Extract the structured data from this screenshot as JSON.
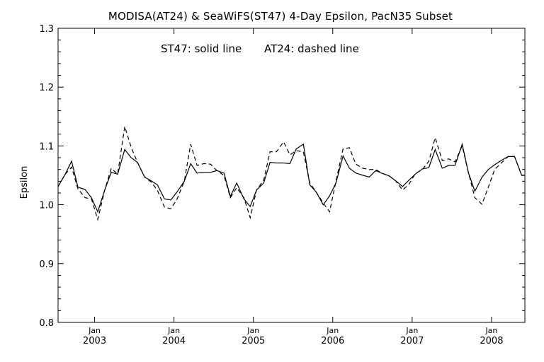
{
  "chart_data": {
    "type": "line",
    "title": "MODISA(AT24) & SeaWiFS(ST47) 4-Day Epsilon, PacN35 Subset",
    "annotation_left": "ST47: solid line",
    "annotation_right": "AT24: dashed line",
    "xlabel": "",
    "ylabel": "Epsilon",
    "ylim": [
      0.8,
      1.3
    ],
    "xlim": [
      2002.54,
      2008.42
    ],
    "y_ticks": [
      "0.8",
      "0.9",
      "1.0",
      "1.1",
      "1.2",
      "1.3"
    ],
    "x_ticks": [
      {
        "month": "Jan",
        "year": "2003",
        "x": 2003.0
      },
      {
        "month": "Jan",
        "year": "2004",
        "x": 2004.0
      },
      {
        "month": "Jan",
        "year": "2005",
        "x": 2005.0
      },
      {
        "month": "Jan",
        "year": "2006",
        "x": 2006.0
      },
      {
        "month": "Jan",
        "year": "2007",
        "x": 2007.0
      },
      {
        "month": "Jan",
        "year": "2008",
        "x": 2008.0
      }
    ],
    "series": [
      {
        "name": "ST47",
        "style": "solid",
        "x": [
          2002.54,
          2002.63,
          2002.71,
          2002.79,
          2002.88,
          2002.96,
          2003.04,
          2003.13,
          2003.21,
          2003.29,
          2003.38,
          2003.46,
          2003.54,
          2003.63,
          2003.71,
          2003.79,
          2003.88,
          2003.96,
          2004.04,
          2004.13,
          2004.21,
          2004.29,
          2004.38,
          2004.46,
          2004.54,
          2004.63,
          2004.71,
          2004.79,
          2004.88,
          2004.96,
          2005.04,
          2005.13,
          2005.21,
          2005.29,
          2005.38,
          2005.46,
          2005.54,
          2005.63,
          2005.71,
          2005.79,
          2005.88,
          2005.96,
          2006.04,
          2006.13,
          2006.21,
          2006.29,
          2006.38,
          2006.46,
          2006.54,
          2006.63,
          2006.71,
          2006.79,
          2006.88,
          2006.96,
          2007.04,
          2007.13,
          2007.21,
          2007.29,
          2007.38,
          2007.46,
          2007.54,
          2007.63,
          2007.71,
          2007.79,
          2007.88,
          2007.96,
          2008.04,
          2008.13,
          2008.21,
          2008.29,
          2008.38,
          2008.42
        ],
        "values": [
          1.031,
          1.052,
          1.074,
          1.03,
          1.026,
          1.012,
          0.988,
          1.026,
          1.055,
          1.052,
          1.094,
          1.08,
          1.072,
          1.047,
          1.041,
          1.034,
          1.01,
          1.008,
          1.022,
          1.04,
          1.07,
          1.054,
          1.055,
          1.055,
          1.058,
          1.054,
          1.014,
          1.037,
          1.01,
          0.997,
          1.025,
          1.037,
          1.072,
          1.071,
          1.071,
          1.07,
          1.095,
          1.103,
          1.034,
          1.022,
          1.0,
          1.015,
          1.037,
          1.083,
          1.062,
          1.054,
          1.05,
          1.047,
          1.058,
          1.053,
          1.049,
          1.041,
          1.031,
          1.042,
          1.052,
          1.061,
          1.063,
          1.094,
          1.062,
          1.067,
          1.067,
          1.103,
          1.054,
          1.023,
          1.047,
          1.06,
          1.068,
          1.076,
          1.082,
          1.082,
          1.05,
          1.05
        ]
      },
      {
        "name": "AT24",
        "style": "dashed",
        "x": [
          2002.54,
          2002.63,
          2002.71,
          2002.79,
          2002.88,
          2002.96,
          2003.04,
          2003.13,
          2003.21,
          2003.29,
          2003.38,
          2003.46,
          2003.54,
          2003.63,
          2003.71,
          2003.79,
          2003.88,
          2003.96,
          2004.04,
          2004.13,
          2004.21,
          2004.29,
          2004.38,
          2004.46,
          2004.54,
          2004.63,
          2004.71,
          2004.79,
          2004.88,
          2004.96,
          2005.04,
          2005.13,
          2005.21,
          2005.29,
          2005.38,
          2005.46,
          2005.54,
          2005.63,
          2005.71,
          2005.79,
          2005.88,
          2005.96,
          2006.04,
          2006.13,
          2006.21,
          2006.29,
          2006.38,
          2006.46,
          2006.54,
          2006.63,
          2006.71,
          2006.79,
          2006.88,
          2006.96,
          2007.04,
          2007.13,
          2007.21,
          2007.29,
          2007.38,
          2007.46,
          2007.54,
          2007.63,
          2007.71,
          2007.79,
          2007.88,
          2007.96,
          2008.04,
          2008.13,
          2008.21,
          2008.29,
          2008.38,
          2008.42
        ],
        "values": [
          1.031,
          1.052,
          1.064,
          1.027,
          1.012,
          1.01,
          0.975,
          1.026,
          1.062,
          1.052,
          1.133,
          1.098,
          1.072,
          1.047,
          1.039,
          1.025,
          0.996,
          0.993,
          1.01,
          1.04,
          1.103,
          1.067,
          1.07,
          1.069,
          1.058,
          1.05,
          1.012,
          1.029,
          1.012,
          0.978,
          1.025,
          1.042,
          1.09,
          1.09,
          1.107,
          1.085,
          1.092,
          1.09,
          1.037,
          1.022,
          1.003,
          0.988,
          1.04,
          1.095,
          1.097,
          1.069,
          1.062,
          1.06,
          1.06,
          1.053,
          1.049,
          1.041,
          1.025,
          1.035,
          1.053,
          1.06,
          1.074,
          1.114,
          1.075,
          1.078,
          1.073,
          1.1,
          1.054,
          1.012,
          1.001,
          1.03,
          1.06,
          1.072,
          1.082,
          1.082,
          1.05,
          1.05
        ]
      }
    ]
  }
}
